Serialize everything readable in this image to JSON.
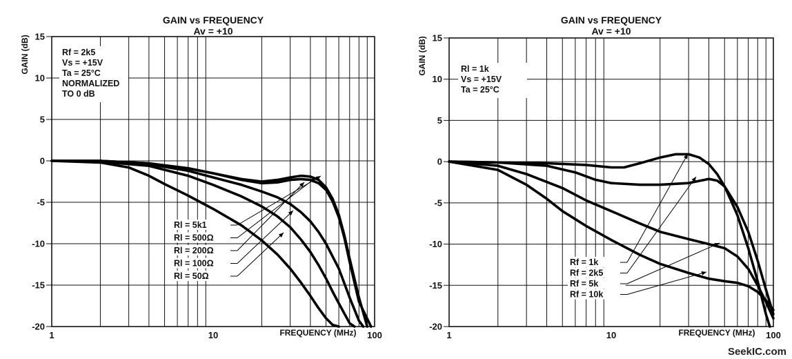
{
  "watermark": "SeekIC.com",
  "chart_data": [
    {
      "type": "line",
      "title": "GAIN vs FREQUENCY",
      "subtitle": "Av = +10",
      "xlabel": "FREQUENCY (MHz)",
      "ylabel": "GAIN (dB)",
      "xscale": "log",
      "xlim": [
        1,
        100
      ],
      "ylim": [
        -20,
        15
      ],
      "x_ticks": [
        1,
        10,
        100
      ],
      "y_ticks": [
        15,
        10,
        5,
        0,
        -5,
        -10,
        -15,
        -20
      ],
      "grid": true,
      "conditions": [
        "Rf = 2k5",
        "Vs = +15V",
        "Ta = 25°C",
        "NORMALIZED",
        "TO 0 dB"
      ],
      "series": [
        {
          "name": "Rl = 5k1",
          "x": [
            1,
            2,
            4,
            7,
            10,
            15,
            20,
            25,
            30,
            35,
            40,
            45,
            50,
            55,
            60,
            65,
            70,
            80,
            90
          ],
          "y": [
            0,
            0,
            -0.3,
            -0.9,
            -1.5,
            -2.2,
            -2.5,
            -2.3,
            -2.0,
            -1.8,
            -1.9,
            -2.3,
            -3.2,
            -4.6,
            -6.5,
            -9.0,
            -11.8,
            -16.5,
            -20
          ]
        },
        {
          "name": "Rl = 500Ω",
          "x": [
            1,
            2,
            4,
            7,
            10,
            15,
            20,
            25,
            30,
            35,
            40,
            45,
            50,
            55,
            60,
            65,
            70,
            80,
            95
          ],
          "y": [
            0,
            0,
            -0.3,
            -0.9,
            -1.5,
            -2.3,
            -2.7,
            -2.6,
            -2.3,
            -2.2,
            -2.3,
            -2.7,
            -3.5,
            -4.9,
            -6.8,
            -9.3,
            -12.2,
            -17,
            -20
          ]
        },
        {
          "name": "Rl = 200Ω",
          "x": [
            1,
            2,
            4,
            7,
            10,
            15,
            20,
            25,
            30,
            35,
            40,
            45,
            50,
            60,
            70,
            80,
            85
          ],
          "y": [
            0,
            0,
            -0.4,
            -1.2,
            -2.0,
            -2.9,
            -3.7,
            -4.4,
            -5.2,
            -6.2,
            -7.3,
            -8.6,
            -10.0,
            -13.0,
            -16.5,
            -19.3,
            -20
          ]
        },
        {
          "name": "Rl = 100Ω",
          "x": [
            1,
            2,
            4,
            7,
            10,
            15,
            20,
            25,
            30,
            35,
            40,
            45,
            50,
            55,
            60,
            70,
            75
          ],
          "y": [
            0,
            -0.1,
            -0.6,
            -1.8,
            -2.9,
            -4.3,
            -5.5,
            -6.7,
            -8.0,
            -9.5,
            -11.0,
            -12.6,
            -14.2,
            -15.8,
            -17.2,
            -19.6,
            -20
          ]
        },
        {
          "name": "Rl = 50Ω",
          "x": [
            1,
            2,
            3,
            4,
            5,
            7,
            10,
            15,
            20,
            25,
            30,
            35,
            40,
            45,
            50,
            55,
            60
          ],
          "y": [
            0,
            -0.2,
            -0.8,
            -1.8,
            -2.8,
            -4.2,
            -5.8,
            -7.8,
            -9.6,
            -11.3,
            -13.0,
            -14.7,
            -16.3,
            -17.8,
            -19.0,
            -19.8,
            -20
          ]
        }
      ],
      "legend": [
        "Rl = 5k1",
        "Rl = 500Ω",
        "Rl = 200Ω",
        "Rl = 100Ω",
        "Rl = 50Ω"
      ]
    },
    {
      "type": "line",
      "title": "GAIN vs FREQUENCY",
      "subtitle": "Av = +10",
      "xlabel": "FREQUENCY (MHz)",
      "ylabel": "GAIN (dB)",
      "xscale": "log",
      "xlim": [
        1,
        100
      ],
      "ylim": [
        -20,
        15
      ],
      "x_ticks": [
        1,
        10,
        100
      ],
      "y_ticks": [
        15,
        10,
        5,
        0,
        -5,
        -10,
        -15,
        -20
      ],
      "grid": true,
      "conditions": [
        "Rl = 1k",
        "Vs = +15V",
        "Ta = 25°C"
      ],
      "series": [
        {
          "name": "Rf = 1k",
          "x": [
            1,
            2,
            4,
            7,
            10,
            12,
            15,
            20,
            25,
            30,
            35,
            40,
            45,
            50,
            55,
            60,
            70,
            80,
            90,
            95
          ],
          "y": [
            0,
            -0.1,
            -0.2,
            -0.4,
            -0.7,
            -0.7,
            -0.2,
            0.5,
            0.9,
            0.9,
            0.5,
            -0.3,
            -1.5,
            -3.0,
            -4.8,
            -6.5,
            -10.5,
            -14.5,
            -18.5,
            -20
          ]
        },
        {
          "name": "Rf = 2k5",
          "x": [
            1,
            2,
            4,
            6,
            8,
            10,
            15,
            20,
            30,
            40,
            45,
            50,
            60,
            70,
            80,
            90,
            100
          ],
          "y": [
            0,
            -0.1,
            -0.5,
            -1.3,
            -2.2,
            -2.6,
            -2.8,
            -2.8,
            -2.6,
            -2.1,
            -2.3,
            -3.0,
            -5.5,
            -8.5,
            -12.0,
            -15.5,
            -18.5
          ]
        },
        {
          "name": "Rf = 5k",
          "x": [
            1,
            2,
            3,
            5,
            7,
            10,
            15,
            20,
            30,
            40,
            50,
            60,
            70,
            80,
            90,
            100
          ],
          "y": [
            0,
            -0.5,
            -1.5,
            -3.2,
            -4.7,
            -6.0,
            -7.5,
            -8.5,
            -9.4,
            -10.0,
            -10.5,
            -11.5,
            -13.0,
            -15.0,
            -17.0,
            -19.0
          ]
        },
        {
          "name": "Rf = 10k",
          "x": [
            1,
            2,
            3,
            4,
            5,
            7,
            10,
            15,
            20,
            30,
            40,
            50,
            60,
            70,
            80,
            90,
            100
          ],
          "y": [
            0,
            -1.0,
            -2.8,
            -4.5,
            -6.0,
            -7.8,
            -9.5,
            -11.3,
            -12.4,
            -13.5,
            -14.2,
            -14.5,
            -14.7,
            -15.1,
            -15.8,
            -16.8,
            -18.0
          ]
        }
      ],
      "legend": [
        "Rf = 1k",
        "Rf = 2k5",
        "Rf = 5k",
        "Rf = 10k"
      ]
    }
  ]
}
